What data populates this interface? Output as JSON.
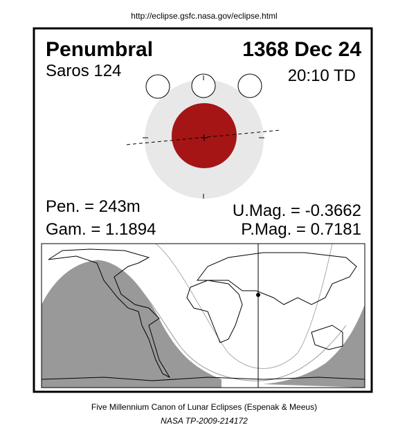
{
  "header": {
    "url": "http://eclipse.gsfc.nasa.gov/eclipse.html"
  },
  "eclipse": {
    "type": "Penumbral",
    "date": "1368 Dec 24",
    "saros": "Saros 124",
    "time": "20:10 TD",
    "pen_duration": "Pen. = 243m",
    "gamma": "Gam. = 1.1894",
    "umbral_magnitude": "U.Mag. = -0.3662",
    "penumbral_magnitude": "P.Mag. = 0.7181"
  },
  "footer": {
    "title": "Five Millennium Canon of Lunar Eclipses (Espenak & Meeus)",
    "reference": "NASA TP-2009-214172"
  }
}
